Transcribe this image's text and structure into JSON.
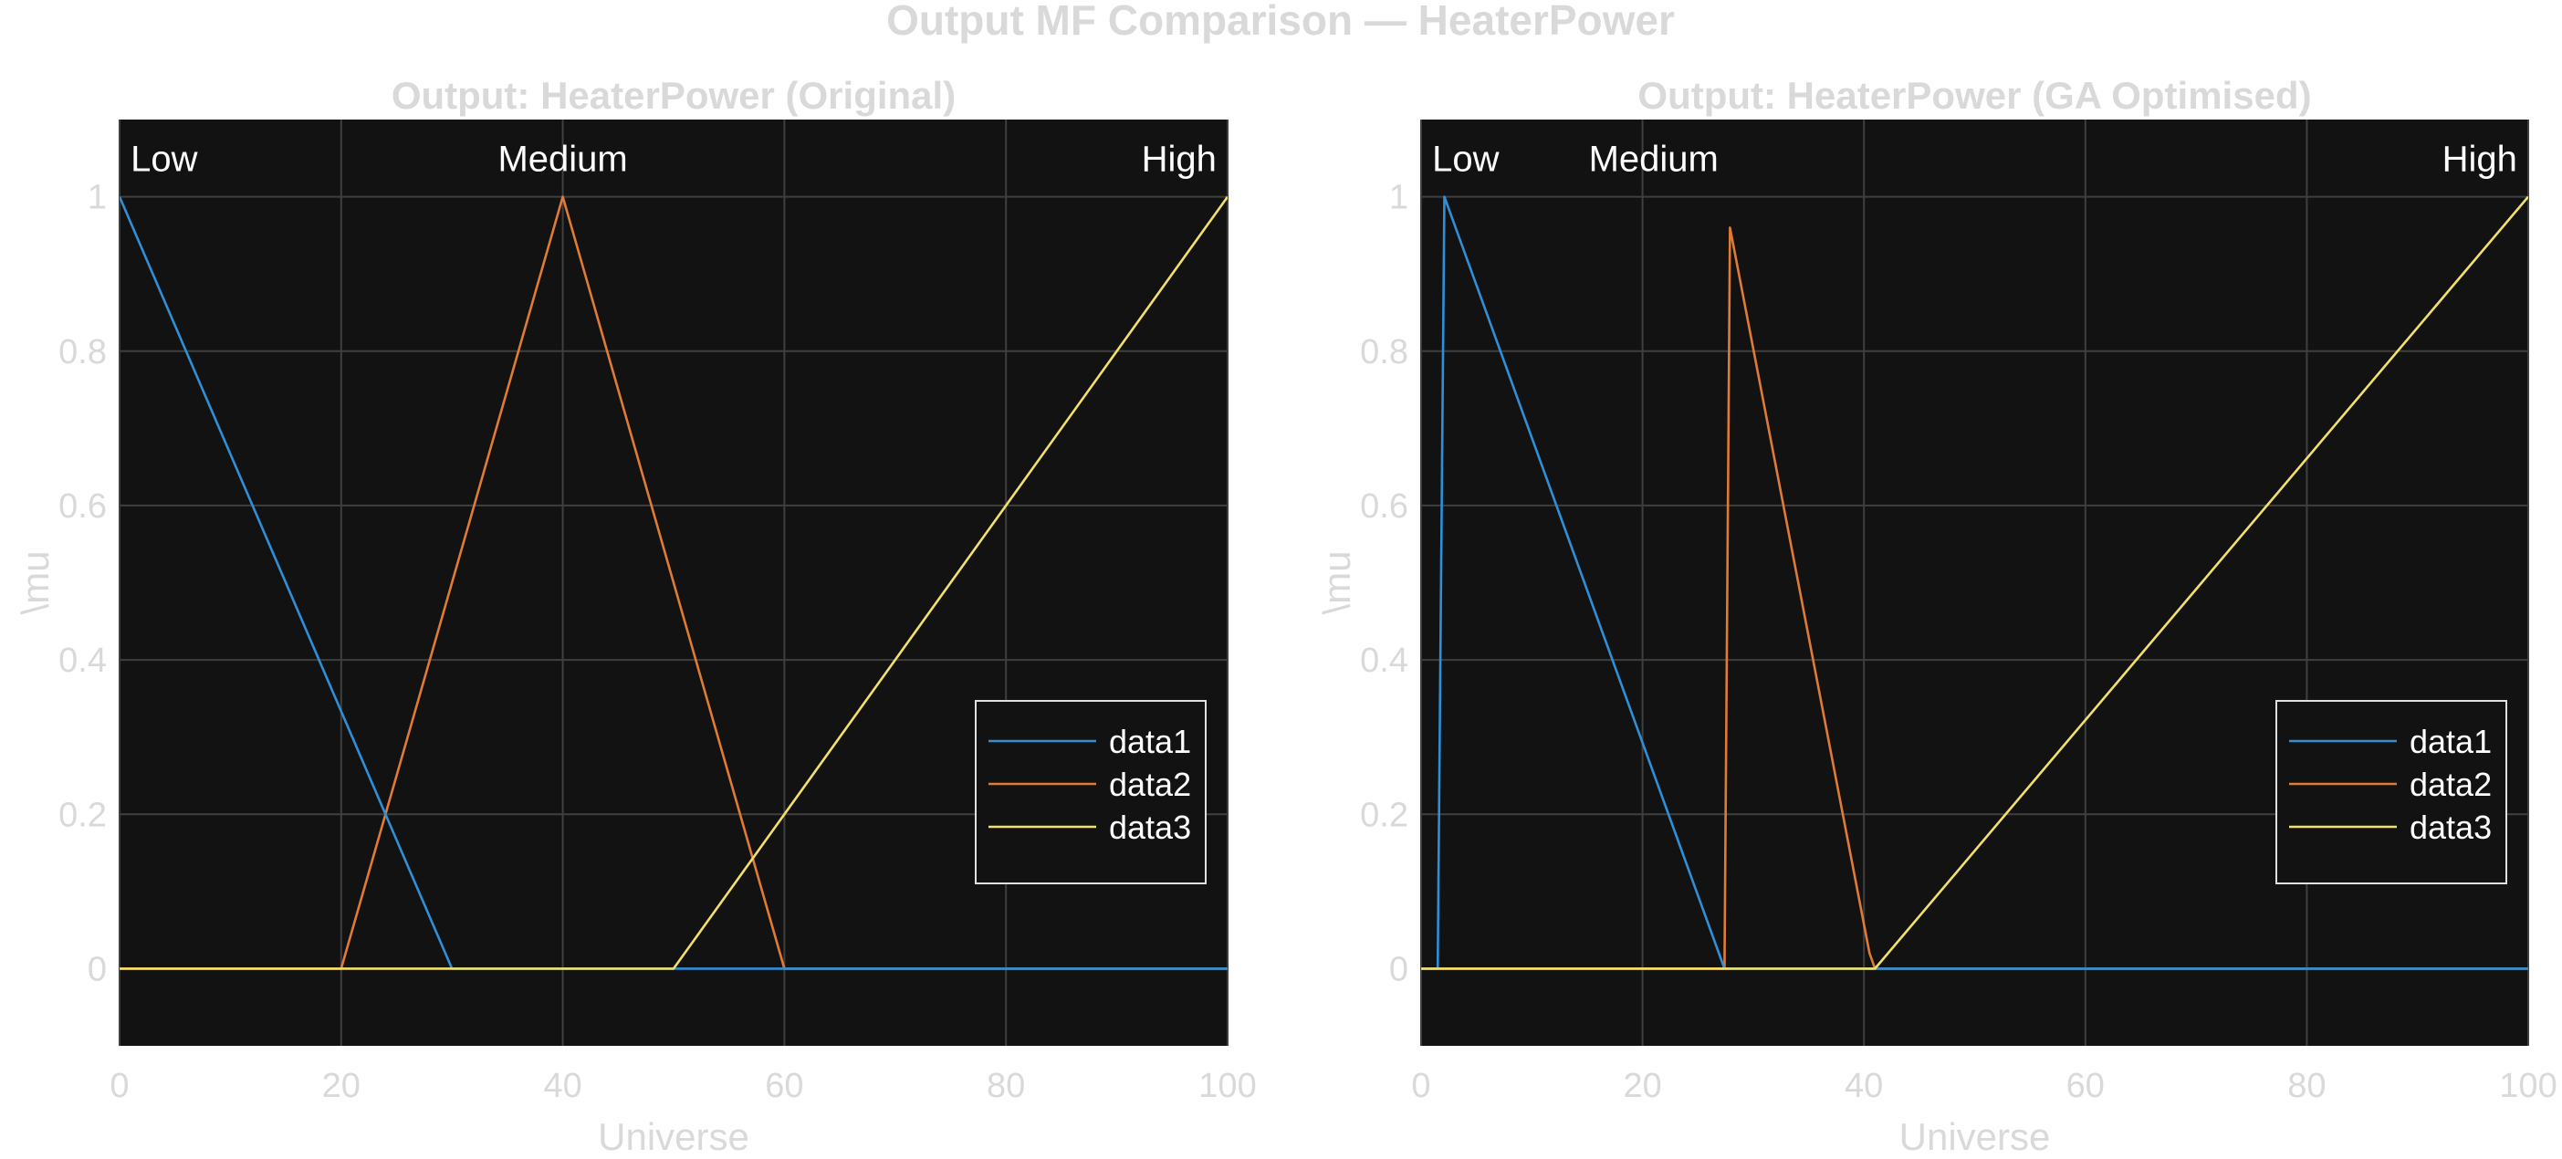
{
  "figure_title": "Output MF Comparison — HeaterPower",
  "colors": {
    "axes_bg": "#121212",
    "grid": "#3f3f3f",
    "faint_text": "#d9d9d9",
    "label_text": "#ffffff",
    "series": [
      "#2f8fd8",
      "#e07b35",
      "#f3e06b"
    ],
    "legend_border": "#e0e0e0"
  },
  "chart_data": [
    {
      "type": "line",
      "title": "Output: HeaterPower (Original)",
      "xlabel": "Universe",
      "ylabel": "\\mu",
      "xlim": [
        0,
        100
      ],
      "ylim": [
        -0.1,
        1.1
      ],
      "xticks": [
        "0",
        "20",
        "40",
        "60",
        "80",
        "100"
      ],
      "yticks": [
        "0",
        "0.2",
        "0.4",
        "0.6",
        "0.8",
        "1"
      ],
      "grid": true,
      "legend_position": "right",
      "annotations": [
        {
          "text": "Low",
          "x": 1,
          "y": 1.05,
          "align": "start"
        },
        {
          "text": "Medium",
          "x": 40,
          "y": 1.05,
          "align": "middle"
        },
        {
          "text": "High",
          "x": 99,
          "y": 1.05,
          "align": "end"
        }
      ],
      "series": [
        {
          "name": "data1",
          "x": [
            0,
            30,
            100
          ],
          "y": [
            1,
            0,
            0
          ]
        },
        {
          "name": "data2",
          "x": [
            0,
            20,
            40,
            60,
            100
          ],
          "y": [
            0,
            0,
            1,
            0,
            0
          ]
        },
        {
          "name": "data3",
          "x": [
            0,
            50,
            100
          ],
          "y": [
            0,
            0,
            1
          ]
        }
      ]
    },
    {
      "type": "line",
      "title": "Output: HeaterPower (GA Optimised)",
      "xlabel": "Universe",
      "ylabel": "\\mu",
      "xlim": [
        0,
        100
      ],
      "ylim": [
        -0.1,
        1.1
      ],
      "xticks": [
        "0",
        "20",
        "40",
        "60",
        "80",
        "100"
      ],
      "yticks": [
        "0",
        "0.2",
        "0.4",
        "0.6",
        "0.8",
        "1"
      ],
      "grid": true,
      "legend_position": "right",
      "annotations": [
        {
          "text": "Low",
          "x": 1,
          "y": 1.05,
          "align": "start"
        },
        {
          "text": "Medium",
          "x": 21,
          "y": 1.05,
          "align": "middle"
        },
        {
          "text": "High",
          "x": 99,
          "y": 1.05,
          "align": "end"
        }
      ],
      "series": [
        {
          "name": "data1",
          "x": [
            0,
            1.5,
            2.1,
            27.4,
            100
          ],
          "y": [
            0,
            0,
            1,
            0,
            0
          ]
        },
        {
          "name": "data2",
          "x": [
            0,
            27.4,
            27.9,
            40.5,
            41,
            100
          ],
          "y": [
            0,
            0,
            0.96,
            0.02,
            0,
            0
          ]
        },
        {
          "name": "data3",
          "x": [
            0,
            41,
            100
          ],
          "y": [
            0,
            0,
            1
          ]
        }
      ]
    }
  ]
}
